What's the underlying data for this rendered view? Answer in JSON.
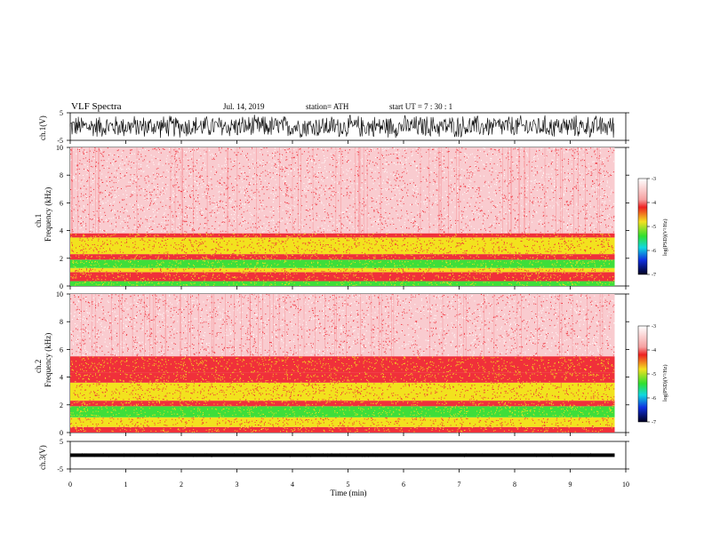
{
  "header": {
    "title": "VLF  Spectra",
    "date": "Jul.  14,  2019",
    "station": "station= ATH",
    "start_ut": "start  UT  =    7  : 30 : 1"
  },
  "chart_data": {
    "type": "heatmap",
    "xlabel": "Time  (min)",
    "x_ticks": [
      "0",
      "1",
      "2",
      "3",
      "4",
      "5",
      "6",
      "7",
      "8",
      "9",
      "10"
    ],
    "xlim": [
      0,
      10
    ],
    "data_end_min": 9.8,
    "panels": [
      {
        "kind": "waveform",
        "ylabel": "ch.1(V)",
        "ylim": [
          -5,
          5
        ],
        "y_ticks": [
          "5",
          "-5"
        ],
        "amplitude": 4.5
      },
      {
        "kind": "spectrogram",
        "ylabel_top": "ch.1",
        "ylabel": "Frequency  (kHz)",
        "ylim": [
          0,
          10
        ],
        "y_ticks": [
          "0",
          "2",
          "4",
          "6",
          "8",
          "10"
        ],
        "colorbar": {
          "label": "log(PSD)(V²/Hz)",
          "range": [
            -7,
            -3
          ],
          "ticks": [
            "-3",
            "-4",
            "-5",
            "-6",
            "-7"
          ]
        },
        "bands_khz": [
          {
            "from": 0.0,
            "to": 0.35,
            "level": "green"
          },
          {
            "from": 0.35,
            "to": 1.0,
            "level": "red-yellow"
          },
          {
            "from": 1.0,
            "to": 1.3,
            "level": "yellow"
          },
          {
            "from": 1.3,
            "to": 1.9,
            "level": "green"
          },
          {
            "from": 1.9,
            "to": 2.3,
            "level": "red"
          },
          {
            "from": 2.3,
            "to": 3.5,
            "level": "yellow"
          },
          {
            "from": 3.5,
            "to": 3.8,
            "level": "red"
          },
          {
            "from": 3.8,
            "to": 10.0,
            "level": "pink"
          }
        ]
      },
      {
        "kind": "spectrogram",
        "ylabel_top": "ch.2",
        "ylabel": "Frequency  (kHz)",
        "ylim": [
          0,
          10
        ],
        "y_ticks": [
          "0",
          "2",
          "4",
          "6",
          "8",
          "10"
        ],
        "colorbar": {
          "label": "log(PSD)(V²/Hz)",
          "range": [
            -7,
            -3
          ],
          "ticks": [
            "-3",
            "-4",
            "-5",
            "-6",
            "-7"
          ]
        },
        "bands_khz": [
          {
            "from": 0.0,
            "to": 0.4,
            "level": "red-yellow"
          },
          {
            "from": 0.4,
            "to": 1.1,
            "level": "yellow"
          },
          {
            "from": 1.1,
            "to": 1.9,
            "level": "green"
          },
          {
            "from": 1.9,
            "to": 2.3,
            "level": "red"
          },
          {
            "from": 2.3,
            "to": 3.6,
            "level": "yellow"
          },
          {
            "from": 3.6,
            "to": 4.3,
            "level": "red"
          },
          {
            "from": 4.3,
            "to": 5.5,
            "level": "red-yellow"
          },
          {
            "from": 5.5,
            "to": 10.0,
            "level": "pink"
          }
        ]
      },
      {
        "kind": "waveform",
        "ylabel": "ch.3(V)",
        "ylim": [
          -5,
          5
        ],
        "y_ticks": [
          "5",
          "-5"
        ],
        "amplitude": 0.6,
        "offset": 0
      }
    ],
    "colors": {
      "pink": "#f4a0a8",
      "red": "#f0303a",
      "yellow": "#f2e21e",
      "green": "#3ede3a",
      "white": "#ffffff"
    }
  }
}
